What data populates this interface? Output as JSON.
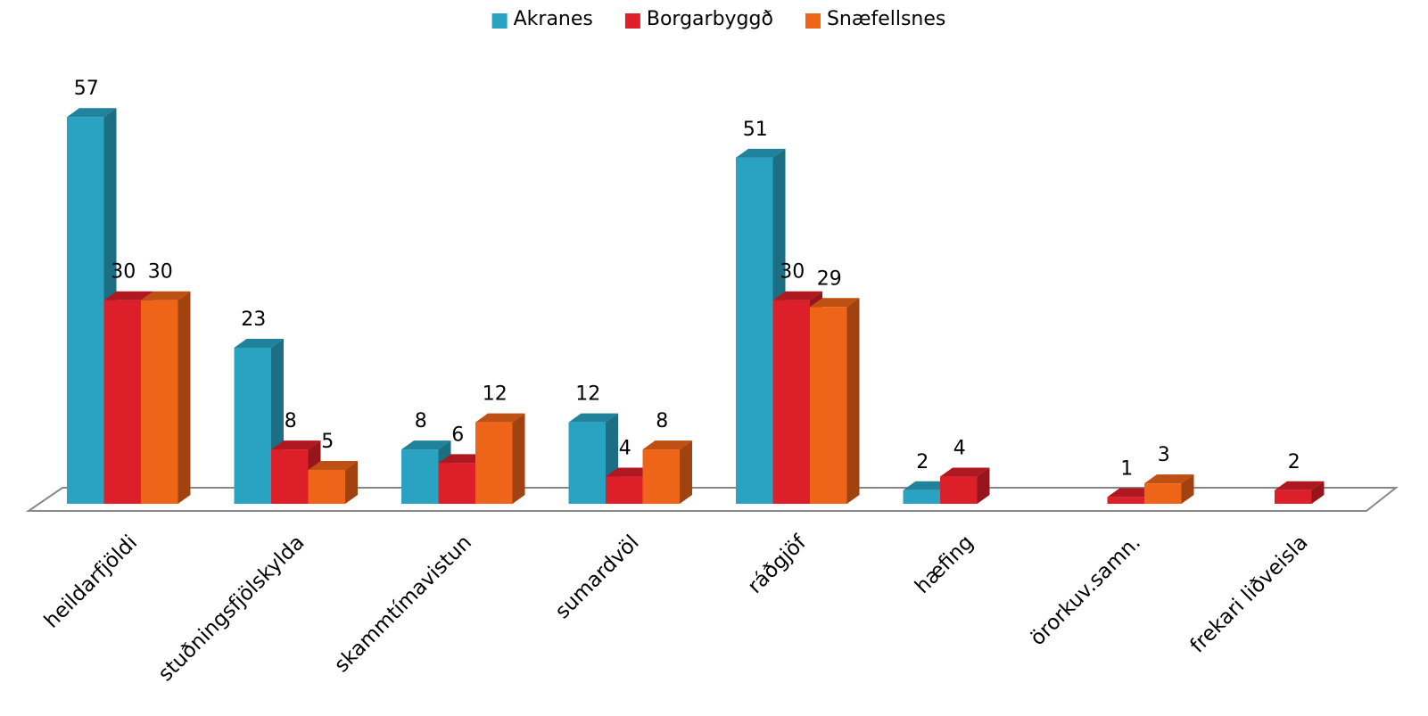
{
  "chart_data": {
    "type": "bar3d",
    "categories": [
      "heildarfjöldi",
      "stuðningsfjölskylda",
      "skammtímavistun",
      "sumardvöl",
      "ráðgjöf",
      "hæfing",
      "örorkuv.samn.",
      "frekari liðveisla"
    ],
    "series": [
      {
        "name": "Akranes",
        "color": "#2aa3c2",
        "values": [
          57,
          23,
          8,
          12,
          51,
          2,
          null,
          null
        ]
      },
      {
        "name": "Borgarbyggð",
        "color": "#dd1f2a",
        "values": [
          30,
          8,
          6,
          4,
          30,
          4,
          1,
          2
        ]
      },
      {
        "name": "Snæfellsnes",
        "color": "#ee6418",
        "values": [
          30,
          5,
          12,
          8,
          29,
          null,
          3,
          null
        ]
      }
    ],
    "legend": "top"
  }
}
